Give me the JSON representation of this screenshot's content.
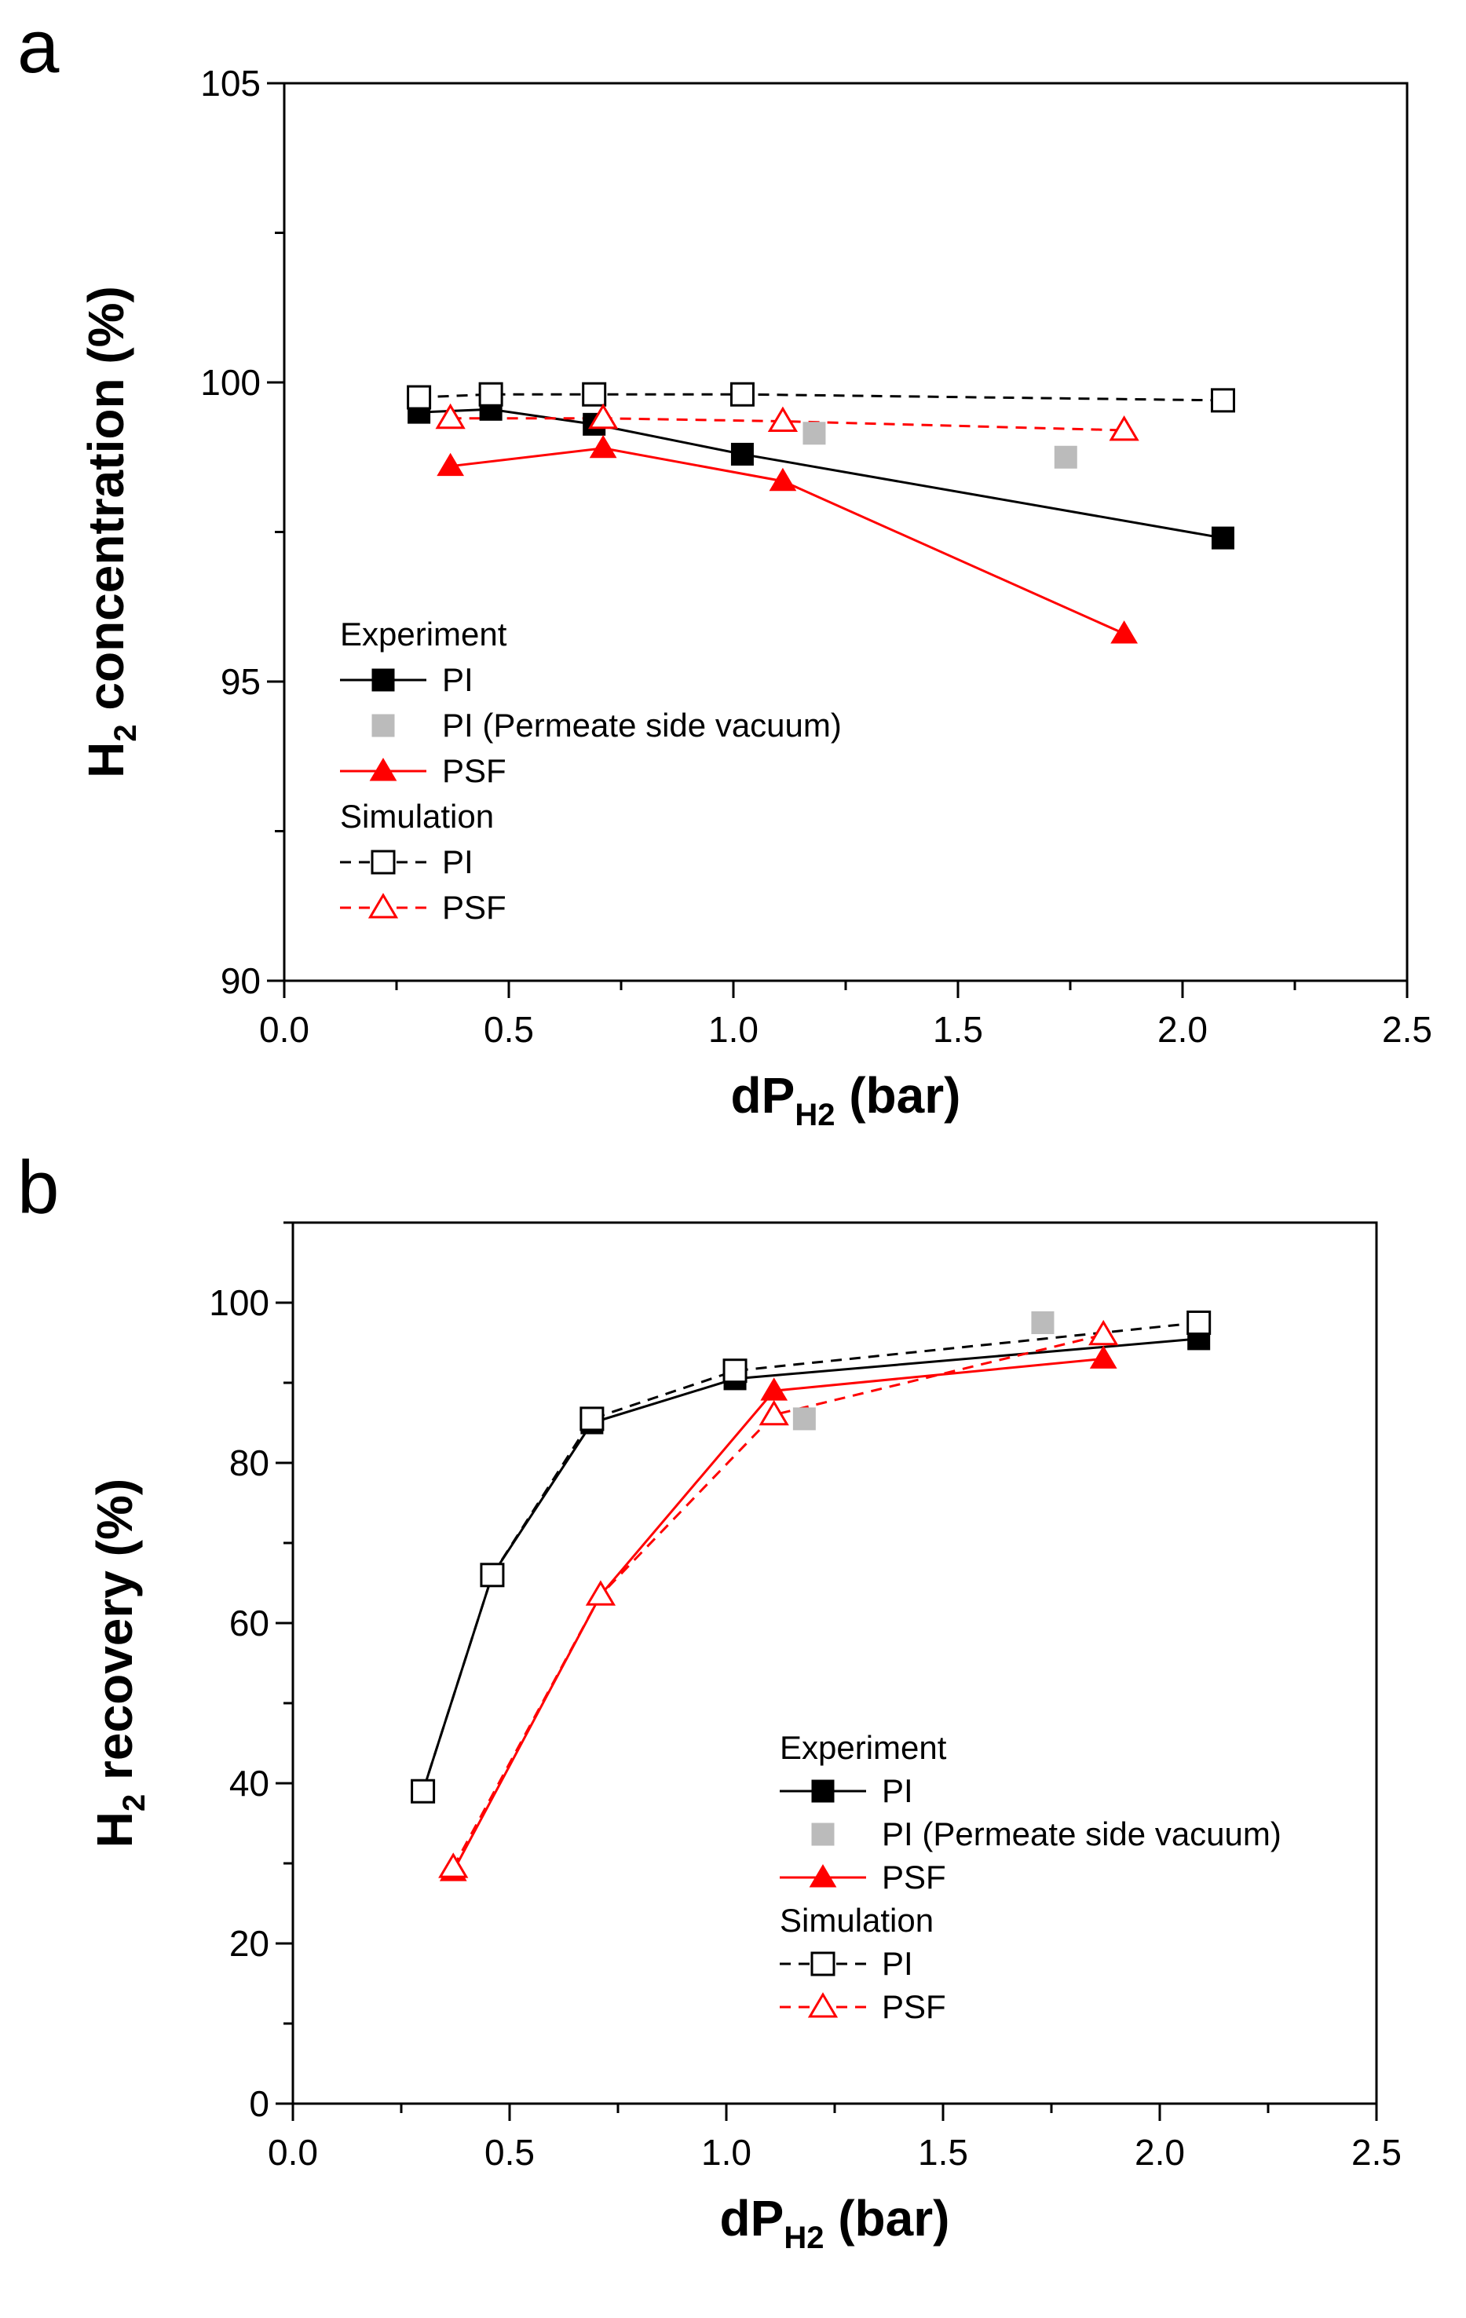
{
  "chart_data": [
    {
      "type": "line",
      "panel_label": "a",
      "xlabel_main": "dP",
      "xlabel_sub": "H2",
      "xlabel_tail": " (bar)",
      "ylabel_main": "H",
      "ylabel_sub": "2",
      "ylabel_tail": " concentration (%)",
      "xlim": [
        0.0,
        2.5
      ],
      "ylim": [
        90,
        105
      ],
      "xticks": [
        0.0,
        0.5,
        1.0,
        1.5,
        2.0,
        2.5
      ],
      "xtick_labels": [
        "0.0",
        "0.5",
        "1.0",
        "1.5",
        "2.0",
        "2.5"
      ],
      "yticks": [
        90,
        95,
        100,
        105
      ],
      "ytick_labels": [
        "90",
        "95",
        "100",
        "105"
      ],
      "x_minor_step": 0.25,
      "y_minor_step": 2.5,
      "grid": false,
      "legend_position": "lower-left",
      "legend_groups": [
        "Experiment",
        "Simulation"
      ],
      "series": [
        {
          "name": "PI",
          "group": "Experiment",
          "marker": "square-filled",
          "color": "#000000",
          "line": "solid",
          "x": [
            0.3,
            0.46,
            0.69,
            1.02,
            2.09
          ],
          "y": [
            99.5,
            99.55,
            99.3,
            98.8,
            97.4
          ]
        },
        {
          "name": "PI (Permeate side vacuum)",
          "group": "Experiment",
          "marker": "square-filled",
          "color": "#bbbbbb",
          "line": "none",
          "x": [
            1.18,
            1.74
          ],
          "y": [
            99.15,
            98.75
          ]
        },
        {
          "name": "PSF",
          "group": "Experiment",
          "marker": "triangle-filled",
          "color": "#ff0000",
          "line": "solid",
          "x": [
            0.37,
            0.71,
            1.11,
            1.87
          ],
          "y": [
            98.6,
            98.9,
            98.35,
            95.8
          ]
        },
        {
          "name": "PI",
          "group": "Simulation",
          "marker": "square-open",
          "color": "#000000",
          "line": "dashed",
          "x": [
            0.3,
            0.46,
            0.69,
            1.02,
            2.09
          ],
          "y": [
            99.75,
            99.8,
            99.8,
            99.8,
            99.7
          ]
        },
        {
          "name": "PSF",
          "group": "Simulation",
          "marker": "triangle-open",
          "color": "#ff0000",
          "line": "dashed",
          "x": [
            0.37,
            0.71,
            1.11,
            1.87
          ],
          "y": [
            99.4,
            99.4,
            99.35,
            99.2
          ]
        }
      ]
    },
    {
      "type": "line",
      "panel_label": "b",
      "xlabel_main": "dP",
      "xlabel_sub": "H2",
      "xlabel_tail": " (bar)",
      "ylabel_main": "H",
      "ylabel_sub": "2",
      "ylabel_tail": " recovery (%)",
      "xlim": [
        0.0,
        2.5
      ],
      "ylim": [
        0,
        110
      ],
      "xticks": [
        0.0,
        0.5,
        1.0,
        1.5,
        2.0,
        2.5
      ],
      "xtick_labels": [
        "0.0",
        "0.5",
        "1.0",
        "1.5",
        "2.0",
        "2.5"
      ],
      "yticks": [
        0,
        20,
        40,
        60,
        80,
        100
      ],
      "ytick_labels": [
        "0",
        "20",
        "40",
        "60",
        "80",
        "100"
      ],
      "x_minor_step": 0.25,
      "y_minor_step": 10,
      "grid": false,
      "legend_position": "lower-right",
      "legend_groups": [
        "Experiment",
        "Simulation"
      ],
      "series": [
        {
          "name": "PI",
          "group": "Experiment",
          "marker": "square-filled",
          "color": "#000000",
          "line": "solid",
          "x": [
            0.3,
            0.46,
            0.69,
            1.02,
            2.09
          ],
          "y": [
            39,
            66,
            85,
            90.5,
            95.5
          ]
        },
        {
          "name": "PI (Permeate side vacuum)",
          "group": "Experiment",
          "marker": "square-filled",
          "color": "#bbbbbb",
          "line": "none",
          "x": [
            1.18,
            1.73
          ],
          "y": [
            85.5,
            97.5
          ]
        },
        {
          "name": "PSF",
          "group": "Experiment",
          "marker": "triangle-filled",
          "color": "#ff0000",
          "line": "solid",
          "x": [
            0.37,
            0.71,
            1.11,
            1.87
          ],
          "y": [
            29,
            63.5,
            89,
            93
          ]
        },
        {
          "name": "PI",
          "group": "Simulation",
          "marker": "square-open",
          "color": "#000000",
          "line": "dashed",
          "x": [
            0.3,
            0.46,
            0.69,
            1.02,
            2.09
          ],
          "y": [
            39,
            66,
            85.5,
            91.5,
            97.5
          ]
        },
        {
          "name": "PSF",
          "group": "Simulation",
          "marker": "triangle-open",
          "color": "#ff0000",
          "line": "dashed",
          "x": [
            0.37,
            0.71,
            1.11,
            1.87
          ],
          "y": [
            29.5,
            63.5,
            86,
            96
          ]
        }
      ]
    }
  ]
}
